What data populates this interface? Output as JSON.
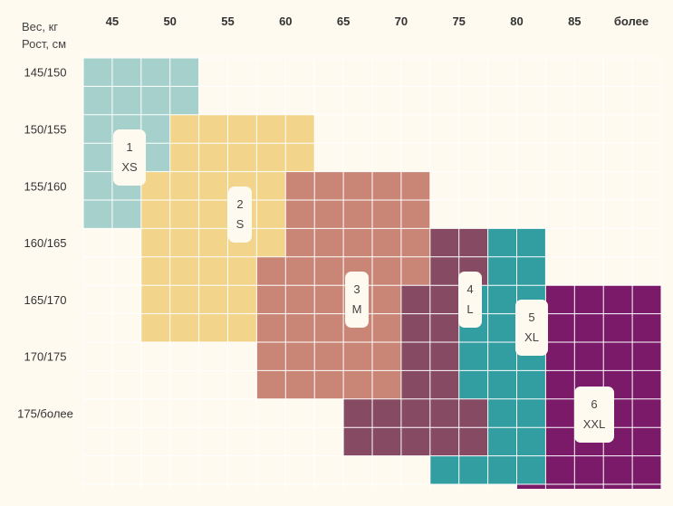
{
  "chart_data": {
    "type": "heatmap",
    "corner_label_top": "Вес, кг",
    "corner_label_bottom": "Рост, см",
    "columns": [
      "45",
      "50",
      "55",
      "60",
      "65",
      "70",
      "75",
      "80",
      "85",
      "более"
    ],
    "rows": [
      "145/150",
      "150/155",
      "155/160",
      "160/165",
      "165/170",
      "170/175",
      "175/более"
    ],
    "sizes": [
      {
        "number": "1",
        "code": "XS",
        "color": "#a5d0cb"
      },
      {
        "number": "2",
        "code": "S",
        "color": "#f2d48b"
      },
      {
        "number": "3",
        "code": "M",
        "color": "#c98575"
      },
      {
        "number": "4",
        "code": "L",
        "color": "#864a62"
      },
      {
        "number": "5",
        "code": "XL",
        "color": "#339ea1"
      },
      {
        "number": "6",
        "code": "XXL",
        "color": "#7a1a68"
      }
    ],
    "grid": [
      "1111000000000000000000",
      "1111000000000000000000",
      "1112222200000000000000",
      "1112222200000000000000",
      "1122222333330000000000",
      "1122222333330000000000",
      "0022222333334455000000",
      "0022223333334455000000",
      "0022223333344555666660",
      "0022223333344555666660",
      "0000003333344555666660",
      "0000003333344555666660",
      "0000000004444455666660",
      "0000000004444455666660",
      "0000000000005555666660",
      "0000000000000006666660"
    ]
  },
  "colors": {
    "background": "#fefaef",
    "grid_lines": "#ffffff",
    "badge_fill": "#fefaef"
  }
}
